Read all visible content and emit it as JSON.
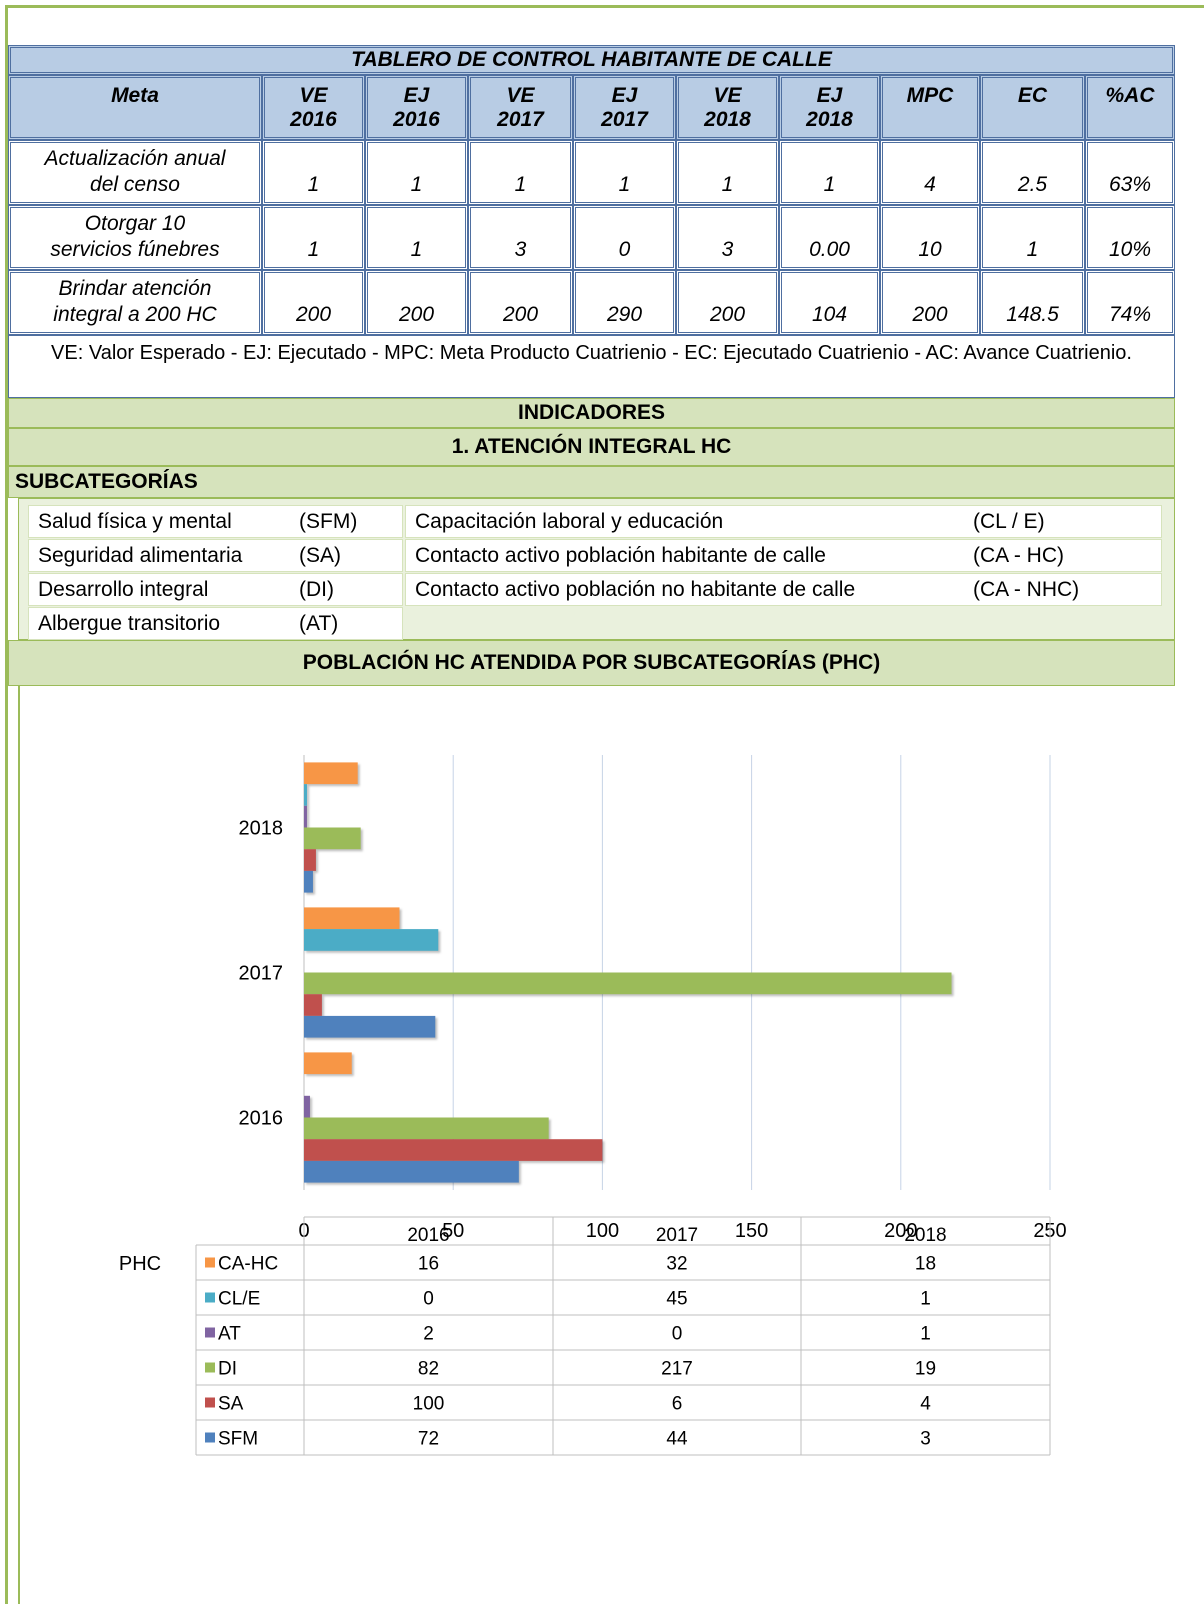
{
  "table": {
    "title": "TABLERO DE CONTROL HABITANTE DE CALLE",
    "header": [
      [
        "Meta"
      ],
      [
        "VE",
        "2016"
      ],
      [
        "EJ",
        "2016"
      ],
      [
        "VE",
        "2017"
      ],
      [
        "EJ",
        "2017"
      ],
      [
        "VE",
        "2018"
      ],
      [
        "EJ",
        "2018"
      ],
      [
        "MPC"
      ],
      [
        "EC"
      ],
      [
        "%AC"
      ]
    ],
    "rows": [
      [
        [
          "Actualización anual",
          "del censo"
        ],
        "1",
        "1",
        "1",
        "1",
        "1",
        "1",
        "4",
        "2.5",
        "63%"
      ],
      [
        [
          "Otorgar 10",
          "servicios fúnebres"
        ],
        "1",
        "1",
        "3",
        "0",
        "3",
        "0.00",
        "10",
        "1",
        "10%"
      ],
      [
        [
          "Brindar atención",
          "integral a 200 HC"
        ],
        "200",
        "200",
        "200",
        "290",
        "200",
        "104",
        "200",
        "148.5",
        "74%"
      ]
    ],
    "note": "VE: Valor Esperado - EJ: Ejecutado - MPC: Meta Producto Cuatrienio - EC: Ejecutado Cuatrienio - AC: Avance Cuatrienio."
  },
  "indicators": {
    "title": "INDICADORES",
    "section": "1. ATENCIÓN INTEGRAL HC",
    "subcategories_title": "SUBCATEGORÍAS",
    "left": [
      [
        "Salud física y mental",
        "(SFM)"
      ],
      [
        "Seguridad alimentaria",
        "(SA)"
      ],
      [
        "Desarrollo integral",
        "(DI)"
      ],
      [
        "Albergue transitorio",
        "(AT)"
      ]
    ],
    "right": [
      [
        "Capacitación laboral y educación",
        "(CL / E)"
      ],
      [
        "Contacto activo población habitante de calle",
        "(CA - HC)"
      ],
      [
        "Contacto activo población no habitante de calle",
        "(CA - NHC)"
      ]
    ],
    "population_title": "POBLACIÓN HC ATENDIDA POR SUBCATEGORÍAS (PHC)"
  },
  "chart_data": {
    "type": "hbar",
    "ylabel": "PHC",
    "categories": [
      "2016",
      "2017",
      "2018"
    ],
    "series": [
      {
        "name": "CA-HC",
        "color": "#f79646",
        "values": [
          16,
          32,
          18
        ]
      },
      {
        "name": "CL/E",
        "color": "#4bacc6",
        "values": [
          0,
          45,
          1
        ]
      },
      {
        "name": "AT",
        "color": "#8064a2",
        "values": [
          2,
          0,
          1
        ]
      },
      {
        "name": "DI",
        "color": "#9bbb59",
        "values": [
          82,
          217,
          19
        ]
      },
      {
        "name": "SA",
        "color": "#c0504d",
        "values": [
          100,
          6,
          4
        ]
      },
      {
        "name": "SFM",
        "color": "#4f81bd",
        "values": [
          72,
          44,
          3
        ]
      }
    ],
    "xlim": [
      0,
      250
    ],
    "xticks": [
      0,
      50,
      100,
      150,
      200,
      250
    ],
    "grid": true
  }
}
